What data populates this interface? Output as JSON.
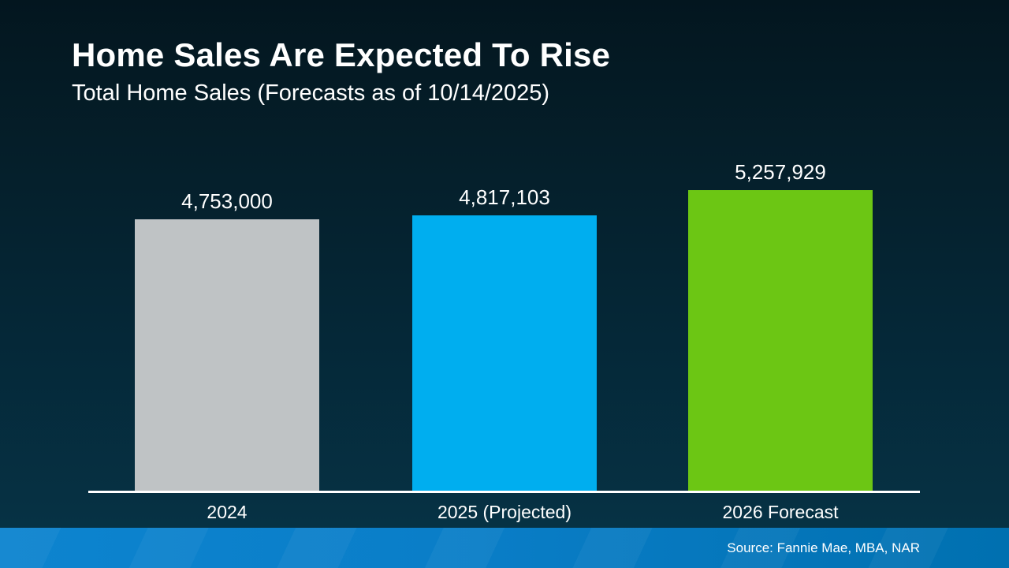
{
  "header": {
    "title": "Home Sales Are Expected To Rise",
    "subtitle": "Total Home Sales (Forecasts as of 10/14/2025)"
  },
  "chart_data": {
    "type": "bar",
    "title": "Home Sales Are Expected To Rise",
    "subtitle": "Total Home Sales (Forecasts as of 10/14/2025)",
    "categories": [
      "2024",
      "2025 (Projected)",
      "2026 Forecast"
    ],
    "values": [
      4753000,
      4817103,
      5257929
    ],
    "value_labels": [
      "4,753,000",
      "4,817,103",
      "5,257,929"
    ],
    "bar_colors": [
      "#bfc3c5",
      "#00aeef",
      "#6cc614"
    ],
    "ylim": [
      0,
      5257929
    ],
    "grid": false,
    "legend": "none",
    "data_labels_position": "above-bars",
    "xlabel": "",
    "ylabel": ""
  },
  "footer": {
    "source": "Source: Fannie Mae, MBA, NAR"
  },
  "colors": {
    "background_top": "#03161f",
    "background_bottom": "#063447",
    "footer_left": "#0d84cf",
    "footer_right": "#0070b0",
    "axis_line": "#ffffff",
    "text": "#ffffff",
    "bar_gray": "#bfc3c5",
    "bar_blue": "#00aeef",
    "bar_green": "#6cc614"
  }
}
